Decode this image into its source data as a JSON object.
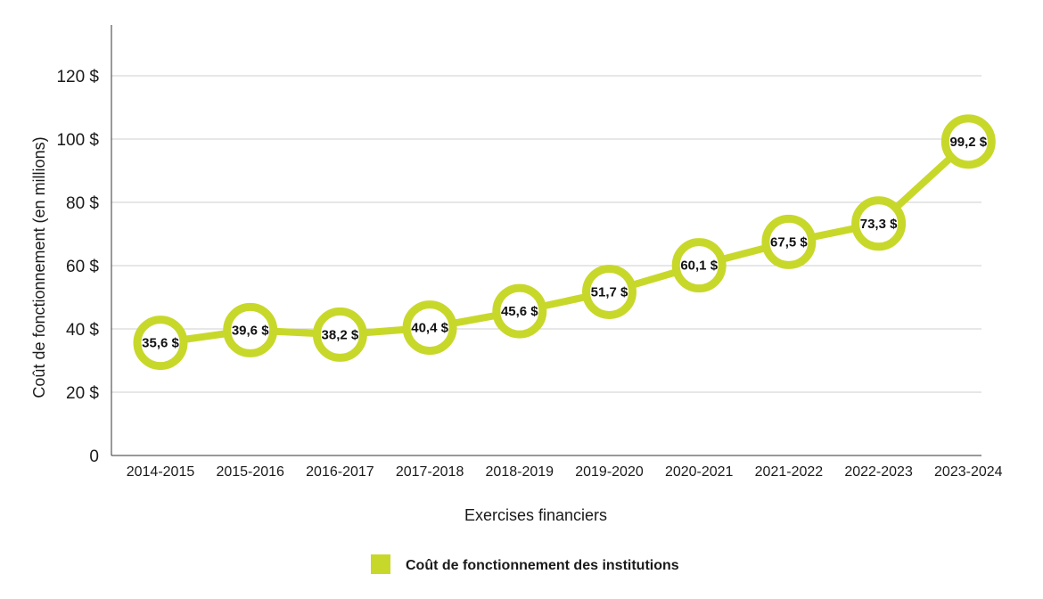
{
  "chart_data": {
    "type": "line",
    "categories": [
      "2014-2015",
      "2015-2016",
      "2016-2017",
      "2017-2018",
      "2018-2019",
      "2019-2020",
      "2020-2021",
      "2021-2022",
      "2022-2023",
      "2023-2024"
    ],
    "series": [
      {
        "name": "Coût de fonctionnement des institutions",
        "values": [
          35.6,
          39.6,
          38.2,
          40.4,
          45.6,
          51.7,
          60.1,
          67.5,
          73.3,
          99.2
        ],
        "labels": [
          "35,6 $",
          "39,6 $",
          "38,2 $",
          "40,4 $",
          "45,6 $",
          "51,7 $",
          "60,1 $",
          "67,5 $",
          "73,3 $",
          "99,2 $"
        ],
        "color": "#c8d82a"
      }
    ],
    "yticks": [
      0,
      20,
      40,
      60,
      80,
      100,
      120
    ],
    "ytick_labels": [
      "0",
      "20 $",
      "40 $",
      "60 $",
      "80 $",
      "100 $",
      "120 $"
    ],
    "ylim": [
      0,
      135
    ],
    "xlabel": "Exercises financiers",
    "ylabel": "Coût de fonctionnement (en millions)",
    "grid": true,
    "legend_position": "bottom-center"
  }
}
